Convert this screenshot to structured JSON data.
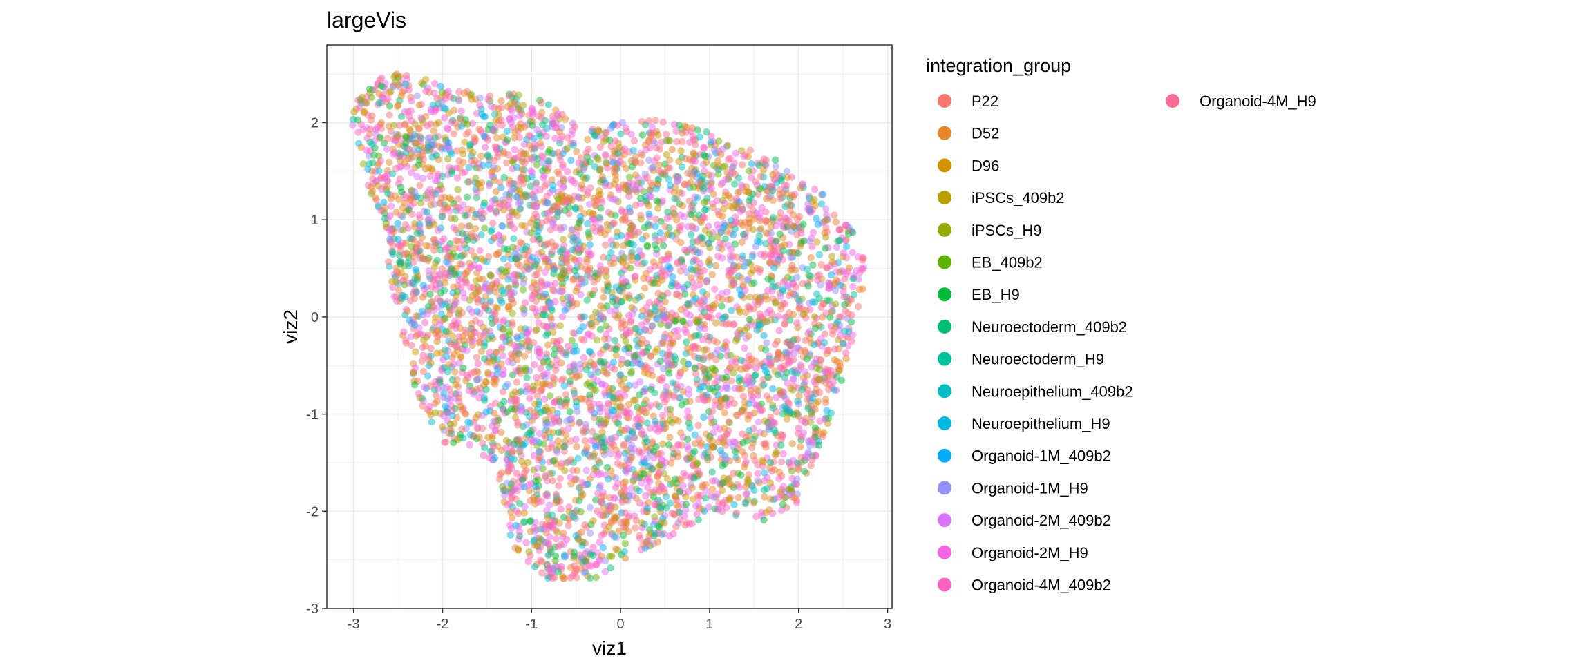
{
  "chart_data": {
    "type": "scatter",
    "title": "largeVis",
    "xlabel": "viz1",
    "ylabel": "viz2",
    "xlim": [
      -3.3,
      3.05
    ],
    "ylim": [
      -3.0,
      2.8
    ],
    "x_ticks": [
      -3,
      -2,
      -1,
      0,
      1,
      2,
      3
    ],
    "y_ticks": [
      -3,
      -2,
      -1,
      0,
      1,
      2
    ],
    "x_tick_labels": [
      "-3",
      "-2",
      "-1",
      "0",
      "1",
      "2",
      "3"
    ],
    "y_tick_labels": [
      "-3",
      "-2",
      "-1",
      "0",
      "1",
      "2"
    ],
    "grid": true,
    "point_alpha": 0.5,
    "legend": {
      "title": "integration_group",
      "placement": "right",
      "columns": 2
    },
    "series": [
      {
        "name": "P22",
        "color": "#F8766D"
      },
      {
        "name": "D52",
        "color": "#E88526"
      },
      {
        "name": "D96",
        "color": "#D39200"
      },
      {
        "name": "iPSCs_409b2",
        "color": "#B79F00"
      },
      {
        "name": "iPSCs_H9",
        "color": "#93AA00"
      },
      {
        "name": "EB_409b2",
        "color": "#5EB300"
      },
      {
        "name": "EB_H9",
        "color": "#00BA38"
      },
      {
        "name": "Neuroectoderm_409b2",
        "color": "#00BF74"
      },
      {
        "name": "Neuroectoderm_H9",
        "color": "#00C19F"
      },
      {
        "name": "Neuroepithelium_409b2",
        "color": "#00BFC4"
      },
      {
        "name": "Neuroepithelium_H9",
        "color": "#00B9E3"
      },
      {
        "name": "Organoid-1M_409b2",
        "color": "#00ADFA"
      },
      {
        "name": "Organoid-1M_H9",
        "color": "#9590FF"
      },
      {
        "name": "Organoid-2M_409b2",
        "color": "#DB72FB"
      },
      {
        "name": "Organoid-2M_H9",
        "color": "#F564E3"
      },
      {
        "name": "Organoid-4M_409b2",
        "color": "#FF61C3"
      },
      {
        "name": "Organoid-4M_H9",
        "color": "#FF6C91"
      }
    ]
  }
}
